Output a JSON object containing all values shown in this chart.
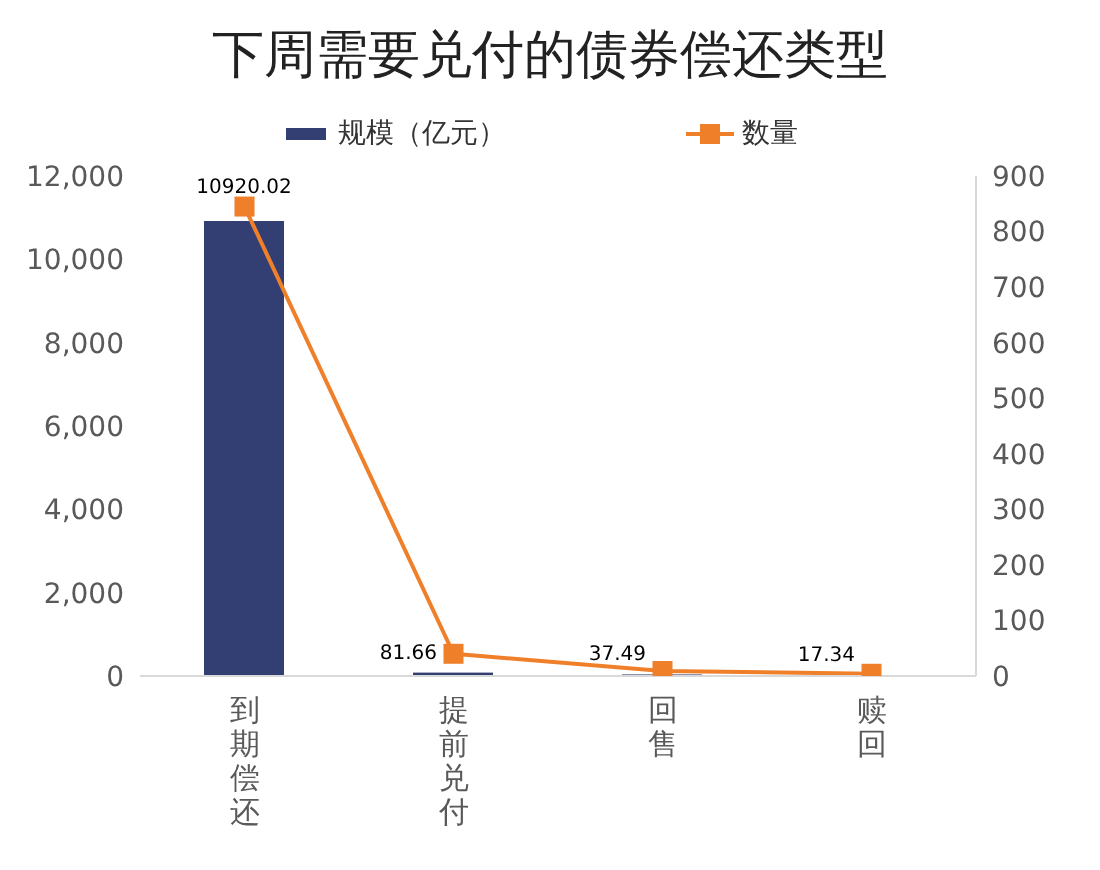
{
  "chart_data": {
    "type": "bar",
    "title": "下周需要兑付的债券偿还类型",
    "categories": [
      "到期偿还",
      "提前兑付",
      "回售",
      "赎回"
    ],
    "series": [
      {
        "name": "规模（亿元）",
        "color": "#333f73",
        "values": [
          10920.02,
          81.66,
          37.49,
          17.34
        ],
        "value_labels": [
          "10920.02",
          "81.66",
          "37.49",
          "17.34"
        ]
      },
      {
        "name": "数量",
        "type": "line",
        "axis": "y2",
        "color": "#f07f2a",
        "marker": "square",
        "values": [
          845,
          40,
          9,
          4
        ]
      }
    ],
    "ylim": [
      0,
      12000
    ],
    "yticks": [
      0,
      {
        "value": 2000,
        "label": "2,000"
      },
      {
        "value": 4000,
        "label": "4,000"
      },
      {
        "value": 6000,
        "label": "6,000"
      },
      {
        "value": 8000,
        "label": "8,000"
      },
      {
        "value": 10000,
        "label": "10,000"
      },
      {
        "value": 12000,
        "label": "12,000"
      }
    ],
    "y2lim": [
      0,
      900
    ],
    "y2ticks": [
      0,
      100,
      200,
      300,
      400,
      500,
      600,
      700,
      800,
      900
    ],
    "legend": "top"
  }
}
